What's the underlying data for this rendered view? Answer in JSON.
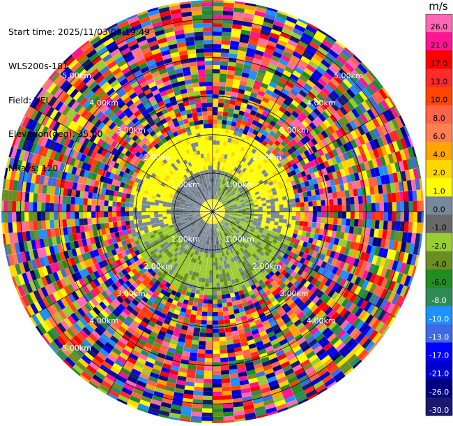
{
  "header": {
    "start_time": "Start time: 2025/11/03 08:19:49",
    "instrument": "WLS200s-181",
    "field": "Field: VEL",
    "elevation": "Elevation(deg): 35.00",
    "nrays": "NRays: 120"
  },
  "chart_data": {
    "type": "heatmap",
    "projection": "polar-ppi",
    "field": "VEL",
    "units": "m/s",
    "nrays": 120,
    "elevation_deg": 35.0,
    "range_rings_km": [
      1.0,
      2.0,
      3.0,
      4.0,
      5.0
    ],
    "ring_labels": [
      {
        "text": "1.00km",
        "ring_km": 1.0,
        "bearing_deg": 315
      },
      {
        "text": "1.00km",
        "ring_km": 1.0,
        "bearing_deg": 45
      },
      {
        "text": "1.00km",
        "ring_km": 1.0,
        "bearing_deg": 225
      },
      {
        "text": "1.00km",
        "ring_km": 1.0,
        "bearing_deg": 135
      },
      {
        "text": "2.00km",
        "ring_km": 2.0,
        "bearing_deg": 315
      },
      {
        "text": "2.00km",
        "ring_km": 2.0,
        "bearing_deg": 45
      },
      {
        "text": "2.00km",
        "ring_km": 2.0,
        "bearing_deg": 225
      },
      {
        "text": "2.00km",
        "ring_km": 2.0,
        "bearing_deg": 135
      },
      {
        "text": "3.00km",
        "ring_km": 3.0,
        "bearing_deg": 315
      },
      {
        "text": "3.00km",
        "ring_km": 3.0,
        "bearing_deg": 45
      },
      {
        "text": "3.00km",
        "ring_km": 3.0,
        "bearing_deg": 225
      },
      {
        "text": "3.00km",
        "ring_km": 3.0,
        "bearing_deg": 135
      },
      {
        "text": "4.00km",
        "ring_km": 4.0,
        "bearing_deg": 315
      },
      {
        "text": "4.00km",
        "ring_km": 4.0,
        "bearing_deg": 45
      },
      {
        "text": "4.00km",
        "ring_km": 4.0,
        "bearing_deg": 225
      },
      {
        "text": "4.00km",
        "ring_km": 4.0,
        "bearing_deg": 135
      },
      {
        "text": "5.00km",
        "ring_km": 5.0,
        "bearing_deg": 315
      },
      {
        "text": "5.00km",
        "ring_km": 5.0,
        "bearing_deg": 45
      },
      {
        "text": "5.00km",
        "ring_km": 5.0,
        "bearing_deg": 225
      }
    ],
    "colorbar": {
      "label": "m/s",
      "ticks": [
        "26.0",
        "21.0",
        "17.0",
        "13.0",
        "10.0",
        "8.0",
        "6.0",
        "4.0",
        "2.0",
        "1.0",
        "0.0",
        "-1.0",
        "-2.0",
        "-4.0",
        "-6.0",
        "-8.0",
        "-10.0",
        "-13.0",
        "-17.0",
        "-21.0",
        "-26.0",
        "-30.0"
      ],
      "colors": [
        "#ff69b4",
        "#ff1493",
        "#ff0000",
        "#ff2a2a",
        "#ff4500",
        "#ff6347",
        "#ff7f50",
        "#ffa500",
        "#ffd700",
        "#ffff00",
        "#778899",
        "#696969",
        "#9acd32",
        "#6b8e23",
        "#228b22",
        "#2e8b57",
        "#1e90ff",
        "#4169e1",
        "#0000ff",
        "#0000cd",
        "#000080",
        "#191970"
      ]
    }
  }
}
